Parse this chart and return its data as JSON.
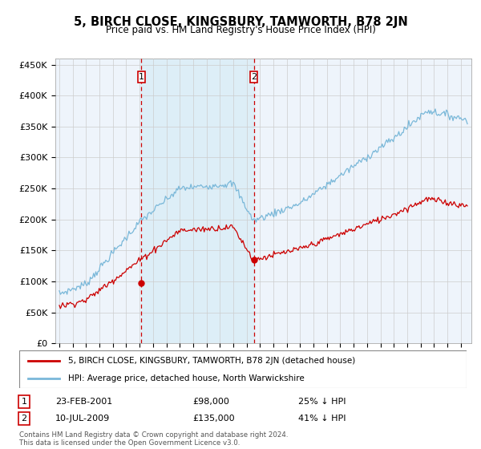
{
  "title": "5, BIRCH CLOSE, KINGSBURY, TAMWORTH, B78 2JN",
  "subtitle": "Price paid vs. HM Land Registry's House Price Index (HPI)",
  "hpi_label": "HPI: Average price, detached house, North Warwickshire",
  "price_label": "5, BIRCH CLOSE, KINGSBURY, TAMWORTH, B78 2JN (detached house)",
  "transaction1_date": "23-FEB-2001",
  "transaction1_price": "£98,000",
  "transaction1_hpi": "25% ↓ HPI",
  "transaction2_date": "10-JUL-2009",
  "transaction2_price": "£135,000",
  "transaction2_hpi": "41% ↓ HPI",
  "copyright": "Contains HM Land Registry data © Crown copyright and database right 2024.\nThis data is licensed under the Open Government Licence v3.0.",
  "hpi_color": "#7ab8d9",
  "price_color": "#cc0000",
  "vline_color": "#cc0000",
  "shade_color": "#ddeef7",
  "bg_color": "#eef4fb",
  "ylim": [
    0,
    460000
  ],
  "yticks": [
    0,
    50000,
    100000,
    150000,
    200000,
    250000,
    300000,
    350000,
    400000,
    450000
  ],
  "sale1_year": 2001.14,
  "sale2_year": 2009.54,
  "sale1_paid": 98000,
  "sale2_paid": 135000
}
